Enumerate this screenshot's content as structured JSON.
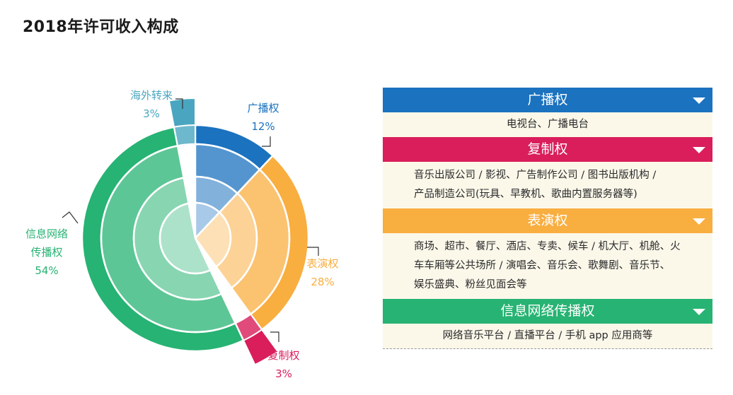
{
  "title": "2018年许可收入构成",
  "chart_data": {
    "type": "pie",
    "title": "2018年许可收入构成",
    "slices": [
      {
        "name": "广播权",
        "label_lines": [
          "广播权"
        ],
        "percent_label": "12%",
        "value": 12,
        "color": "#1b72bf",
        "exploded": false
      },
      {
        "name": "表演权",
        "label_lines": [
          "表演权"
        ],
        "percent_label": "28%",
        "value": 28,
        "color": "#f9ae40",
        "exploded": false
      },
      {
        "name": "复制权",
        "label_lines": [
          "复制权"
        ],
        "percent_label": "3%",
        "value": 3,
        "color": "#d91e5b",
        "exploded": true
      },
      {
        "name": "信息网络传播权",
        "label_lines": [
          "信息网络",
          "传播权"
        ],
        "percent_label": "54%",
        "value": 54,
        "color": "#27b373",
        "exploded": false
      },
      {
        "name": "海外转来",
        "label_lines": [
          "海外转来"
        ],
        "percent_label": "3%",
        "value": 3,
        "color": "#4aa6c0",
        "exploded": true
      }
    ]
  },
  "categories": [
    {
      "name": "广播权",
      "color": "#1b72bf",
      "align": "center",
      "lines": [
        "电视台、广播电台"
      ]
    },
    {
      "name": "复制权",
      "color": "#d91e5b",
      "align": "left",
      "lines": [
        "音乐出版公司 / 影视、广告制作公司 / 图书出版机构 /",
        "产品制造公司(玩具、早教机、歌曲内置服务器等)"
      ]
    },
    {
      "name": "表演权",
      "color": "#f9ae40",
      "align": "left",
      "lines": [
        "商场、超市、餐厅、酒店、专卖、候车 / 机大厅、机舱、火",
        "车车厢等公共场所 / 演唱会、音乐会、歌舞剧、音乐节、",
        "娱乐盛典、粉丝见面会等"
      ]
    },
    {
      "name": "信息网络传播权",
      "color": "#27b373",
      "align": "center",
      "lines": [
        "网络音乐平台 / 直播平台 / 手机 app 应用商等"
      ]
    }
  ]
}
